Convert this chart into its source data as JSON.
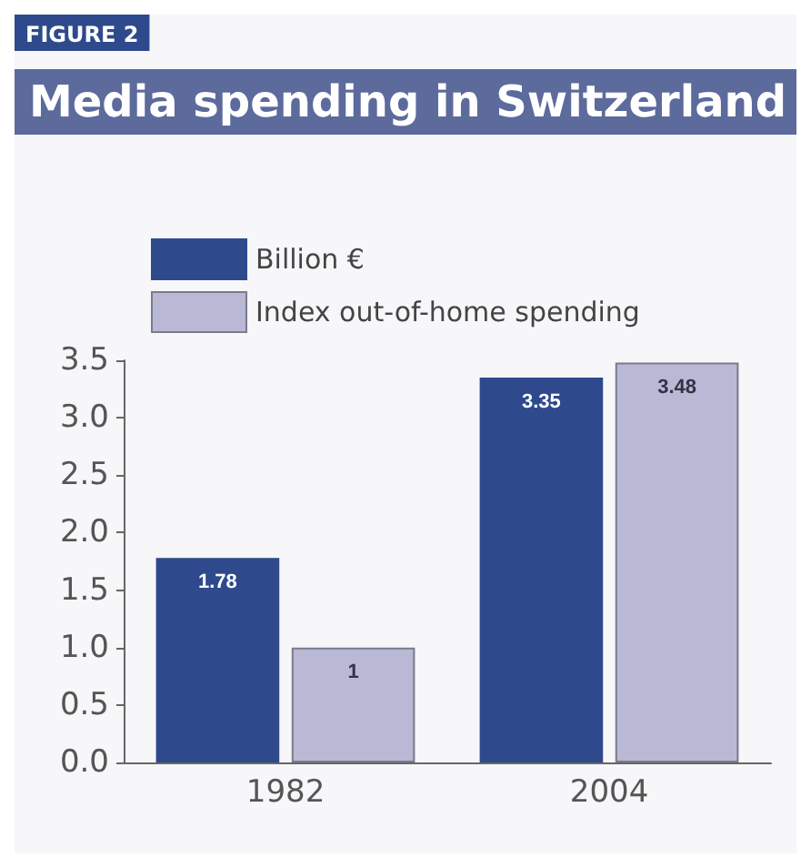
{
  "chart_data": {
    "type": "bar",
    "title": "Media spending in Switzerland",
    "annotations": [
      "FIGURE 2"
    ],
    "categories": [
      "1982",
      "2004"
    ],
    "series": [
      {
        "name": "Billion €",
        "color": "#2e4a8c",
        "values": [
          1.78,
          3.35
        ]
      },
      {
        "name": "Index out-of-home spending",
        "color": "#b9b9d6",
        "values": [
          1,
          3.48
        ]
      }
    ],
    "ylim": [
      0,
      3.5
    ],
    "yticks": [
      {
        "value": 0,
        "label": "0.0"
      },
      0.5,
      {
        "value": 1,
        "label": "1.0"
      },
      1.5,
      {
        "value": 2,
        "label": "2.0"
      },
      2.5,
      {
        "value": 3,
        "label": "3.0"
      },
      3.5
    ],
    "data_labels": true,
    "grid": false,
    "legend": "top left"
  }
}
